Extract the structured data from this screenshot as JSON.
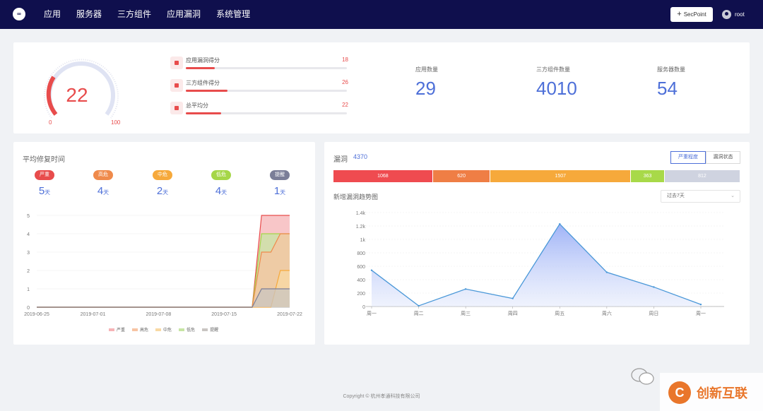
{
  "header": {
    "logo_text": "∞",
    "nav": [
      "应用",
      "服务器",
      "三方组件",
      "应用漏洞",
      "系统管理"
    ],
    "secpoint_label": "SecPoint",
    "secpoint_plus": "+",
    "user_name": "root"
  },
  "score": {
    "value": "22",
    "min_label": "0",
    "max_label": "100",
    "bars": [
      {
        "label": "应用漏洞得分",
        "value": "18",
        "percent": 18
      },
      {
        "label": "三方组件得分",
        "value": "26",
        "percent": 26
      },
      {
        "label": "总平均分",
        "value": "22",
        "percent": 22
      }
    ],
    "stats": [
      {
        "label": "应用数量",
        "value": "29"
      },
      {
        "label": "三方组件数量",
        "value": "4010"
      },
      {
        "label": "服务器数量",
        "value": "54"
      }
    ]
  },
  "fix_time": {
    "title": "平均修复时间",
    "unit": "天",
    "levels": [
      {
        "label": "严重",
        "days": "5",
        "color": "#e84c4c"
      },
      {
        "label": "高危",
        "days": "4",
        "color": "#ef8a4b"
      },
      {
        "label": "中危",
        "days": "2",
        "color": "#f6a93b"
      },
      {
        "label": "低危",
        "days": "4",
        "color": "#a5d648"
      },
      {
        "label": "提醒",
        "days": "1",
        "color": "#7b7e98"
      }
    ]
  },
  "vulnerabilities": {
    "title": "漏洞",
    "total": "4370",
    "tabs": [
      "严重程度",
      "漏洞状态"
    ],
    "segments": [
      {
        "value": "1068",
        "count": 1068,
        "color": "#ef4b50"
      },
      {
        "value": "620",
        "count": 620,
        "color": "#ef7e45"
      },
      {
        "value": "1507",
        "count": 1507,
        "color": "#f6a93b"
      },
      {
        "value": "363",
        "count": 363,
        "color": "#a8d949"
      },
      {
        "value": "812",
        "count": 812,
        "color": "#cfd3e0"
      }
    ],
    "trend_title": "新增漏洞趋势图",
    "range_select": "过去7天",
    "select_arrow": "⌄"
  },
  "chart_data": [
    {
      "type": "area",
      "title": "平均修复时间",
      "categories": [
        "2019-06-25",
        "2019-07-01",
        "2019-07-08",
        "2019-07-15",
        "2019-07-22"
      ],
      "x": [
        "2019-06-25",
        "2019-06-26",
        "2019-06-27",
        "2019-06-28",
        "2019-06-29",
        "2019-06-30",
        "2019-07-01",
        "2019-07-02",
        "2019-07-03",
        "2019-07-04",
        "2019-07-05",
        "2019-07-06",
        "2019-07-07",
        "2019-07-08",
        "2019-07-09",
        "2019-07-10",
        "2019-07-11",
        "2019-07-12",
        "2019-07-13",
        "2019-07-14",
        "2019-07-15",
        "2019-07-16",
        "2019-07-17",
        "2019-07-18",
        "2019-07-19",
        "2019-07-20",
        "2019-07-21",
        "2019-07-22"
      ],
      "series": [
        {
          "name": "严重",
          "color": "#e84c4c",
          "fill": "#f6b3b6",
          "values": [
            0,
            0,
            0,
            0,
            0,
            0,
            0,
            0,
            0,
            0,
            0,
            0,
            0,
            0,
            0,
            0,
            0,
            0,
            0,
            0,
            0,
            0,
            0,
            0,
            5,
            5,
            5,
            5
          ]
        },
        {
          "name": "高危",
          "color": "#ef8a4b",
          "fill": "#f7c4a3",
          "values": [
            0,
            0,
            0,
            0,
            0,
            0,
            0,
            0,
            0,
            0,
            0,
            0,
            0,
            0,
            0,
            0,
            0,
            0,
            0,
            0,
            0,
            0,
            0,
            0,
            3,
            3,
            4,
            4
          ]
        },
        {
          "name": "中危",
          "color": "#f6a93b",
          "fill": "#f8d9a4",
          "values": [
            0,
            0,
            0,
            0,
            0,
            0,
            0,
            0,
            0,
            0,
            0,
            0,
            0,
            0,
            0,
            0,
            0,
            0,
            0,
            0,
            0,
            0,
            0,
            0,
            0,
            0,
            2,
            2
          ]
        },
        {
          "name": "低危",
          "color": "#a5d648",
          "fill": "#c7e5a4",
          "values": [
            0,
            0,
            0,
            0,
            0,
            0,
            0,
            0,
            0,
            0,
            0,
            0,
            0,
            0,
            0,
            0,
            0,
            0,
            0,
            0,
            0,
            0,
            0,
            0,
            4,
            4,
            4,
            4
          ]
        },
        {
          "name": "提醒",
          "color": "#7b7e98",
          "fill": "#c9c5c2",
          "values": [
            0,
            0,
            0,
            0,
            0,
            0,
            0,
            0,
            0,
            0,
            0,
            0,
            0,
            0,
            0,
            0,
            0,
            0,
            0,
            0,
            0,
            0,
            0,
            0,
            1,
            1,
            1,
            1
          ]
        }
      ],
      "y_ticks": [
        "0",
        "1",
        "2",
        "3",
        "4",
        "5"
      ],
      "ylim": [
        0,
        5
      ],
      "legend_position": "bottom"
    },
    {
      "type": "area",
      "title": "新增漏洞趋势图",
      "categories": [
        "周一",
        "周二",
        "周三",
        "周四",
        "周五",
        "周六",
        "周日",
        "周一"
      ],
      "series": [
        {
          "name": "新增漏洞",
          "color": "#4a98d8",
          "values": [
            540,
            10,
            260,
            120,
            1230,
            510,
            290,
            30
          ]
        }
      ],
      "y_ticks": [
        "0",
        "200",
        "400",
        "600",
        "800",
        "1k",
        "1.2k",
        "1.4k"
      ],
      "ylim": [
        0,
        1400
      ]
    }
  ],
  "footer": {
    "copyright": "Copyright © 杭州孝通科技有限公司"
  },
  "watermark": {
    "brand": "创新互联",
    "glyph": "C"
  }
}
